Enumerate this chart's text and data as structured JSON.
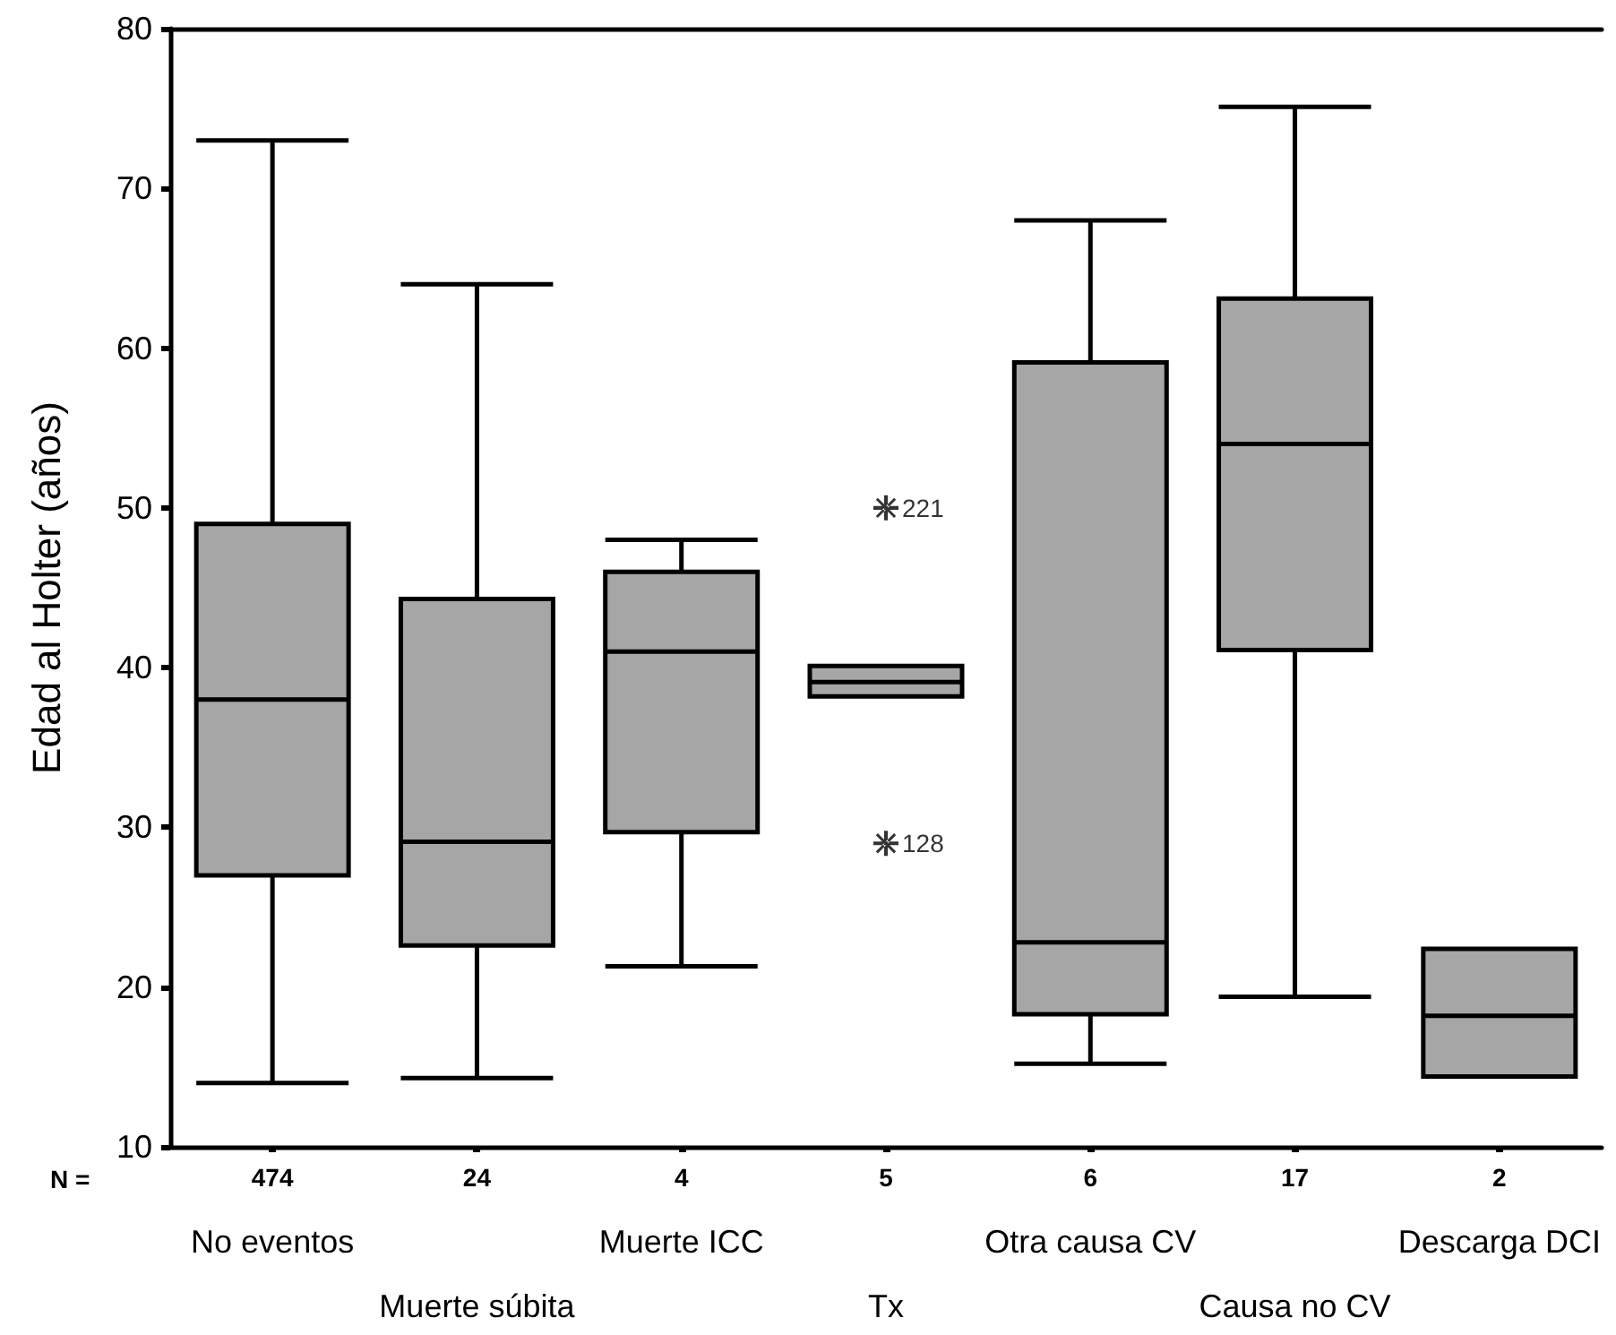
{
  "chart_data": {
    "type": "box",
    "ylabel": "Edad al Holter (años)",
    "categories": [
      "No eventos",
      "Muerte súbita",
      "Muerte ICC",
      "Tx",
      "Otra causa CV",
      "Causa no CV",
      "Descarga DCI"
    ],
    "series": [
      {
        "color": "#a6a6a6",
        "boxes": [
          {
            "low": 14,
            "q1": 27,
            "median": 38,
            "q3": 49,
            "high": 73
          },
          {
            "low": 14.3,
            "q1": 22.6,
            "median": 29.1,
            "q3": 44.3,
            "high": 64
          },
          {
            "low": 21.3,
            "q1": 29.7,
            "median": 41,
            "q3": 46,
            "high": 48
          },
          {
            "low": 38.2,
            "q1": 38.2,
            "median": 39.1,
            "q3": 40.1,
            "high": 40.1,
            "outliers": [
              50,
              29
            ]
          },
          {
            "low": 15.2,
            "q1": 18.3,
            "median": 22.8,
            "q3": 59.1,
            "high": 68
          },
          {
            "low": 19.4,
            "q1": 41.1,
            "median": 54,
            "q3": 63.1,
            "high": 75.1
          },
          {
            "low": 14.4,
            "q1": 14.4,
            "median": 18.2,
            "q3": 22.4,
            "high": 22.4
          }
        ]
      }
    ],
    "ylim": [
      10,
      80
    ],
    "yticks": [
      10,
      20,
      30,
      40,
      50,
      60,
      70,
      80
    ],
    "grid": false,
    "marker": "cross",
    "annotations": [
      "N =",
      "474",
      "24",
      "4",
      "5",
      "6",
      "17",
      "2",
      "221",
      "128"
    ]
  }
}
